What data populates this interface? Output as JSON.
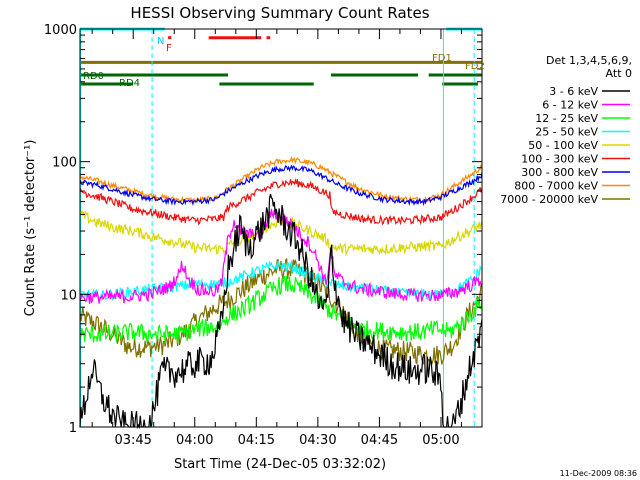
{
  "chart_data": {
    "type": "line",
    "title": "HESSI Observing Summary Count Rates",
    "xlabel": "Start Time (24-Dec-05 03:32:02)",
    "ylabel": "Count Rate (s⁻¹ detector⁻¹)",
    "ylog": true,
    "ylim": [
      1,
      1000
    ],
    "xlim_minutes": [
      212.033,
      310.0
    ],
    "x_ticks": [
      "03:45",
      "04:00",
      "04:15",
      "04:30",
      "04:45",
      "05:00"
    ],
    "y_ticks": [
      "1",
      "10",
      "100",
      "1000"
    ],
    "grid": false,
    "timestamp": "11-Dec-2009 08:36",
    "legend": {
      "placement": "right",
      "header": [
        "Det 1,3,4,5,6,9,",
        "Att 0"
      ],
      "entries": [
        {
          "label": "3 - 6 keV",
          "color": "#000000"
        },
        {
          "label": "6 - 12 keV",
          "color": "#ff00ff"
        },
        {
          "label": "12 - 25 keV",
          "color": "#00ff00"
        },
        {
          "label": "25 - 50 keV",
          "color": "#00ffff"
        },
        {
          "label": "50 - 100 keV",
          "color": "#d8d800"
        },
        {
          "label": "100 - 300 keV",
          "color": "#ee1111"
        },
        {
          "label": "300 - 800 keV",
          "color": "#0000ee"
        },
        {
          "label": "800 - 7000 keV",
          "color": "#ff8800"
        },
        {
          "label": "7000 - 20000 keV",
          "color": "#807000"
        }
      ]
    },
    "flag_labels": {
      "N": "N",
      "F": "F",
      "FD1": "FD1",
      "FD2": "FD2",
      "RD0": "RD0",
      "RD4": "RD4"
    },
    "flags": [
      {
        "label": "N",
        "color": "#00ffff",
        "value": 1000,
        "segments": [
          [
            212.0,
            232.7
          ],
          [
            263.0,
            263.0
          ],
          [
            301.3,
            310.0
          ]
        ]
      },
      {
        "label": "F",
        "color": "#ee1111",
        "value": 860,
        "segments": [
          [
            233.5,
            234.3
          ],
          [
            243.4,
            256.2
          ],
          [
            257.5,
            258.4
          ]
        ]
      },
      {
        "label": "FD",
        "color": "#807000",
        "value": 560,
        "segments": [
          [
            212.0,
            310.0
          ]
        ]
      },
      {
        "label": "RD0",
        "color": "#006600",
        "value": 450,
        "segments": [
          [
            212.0,
            248.1
          ],
          [
            273.2,
            294.4
          ],
          [
            297.0,
            311.0
          ]
        ]
      },
      {
        "label": "RD4",
        "color": "#006600",
        "value": 385,
        "segments": [
          [
            212.0,
            225.0
          ],
          [
            246.0,
            269.0
          ],
          [
            300.3,
            309.0
          ]
        ]
      }
    ],
    "vertical_lines": {
      "solid": [
        212.2,
        300.6
      ],
      "dashed": [
        229.6,
        308.1
      ],
      "color": "#00ffff"
    },
    "series": [
      {
        "name": "3 - 6 keV",
        "color": "#000000",
        "noise": 0.12,
        "points": [
          [
            212,
            1.0
          ],
          [
            215,
            2.8
          ],
          [
            217,
            1.8
          ],
          [
            220,
            1.2
          ],
          [
            223,
            1.0
          ],
          [
            228,
            1.0
          ],
          [
            229.3,
            1.1
          ],
          [
            232,
            2.6
          ],
          [
            236,
            2.6
          ],
          [
            240,
            3.0
          ],
          [
            244,
            3.2
          ],
          [
            246.5,
            6.0
          ],
          [
            248,
            15
          ],
          [
            249.5,
            22
          ],
          [
            251,
            32
          ],
          [
            253,
            22
          ],
          [
            255,
            28
          ],
          [
            256.5,
            33
          ],
          [
            259,
            47
          ],
          [
            261,
            38
          ],
          [
            263,
            30
          ],
          [
            265,
            25
          ],
          [
            267,
            17
          ],
          [
            269,
            11
          ],
          [
            271,
            7.5
          ],
          [
            272.5,
            9
          ],
          [
            273.2,
            24
          ],
          [
            274,
            13
          ],
          [
            276,
            6.5
          ],
          [
            279,
            5
          ],
          [
            283,
            4
          ],
          [
            288,
            3
          ],
          [
            293,
            2.6
          ],
          [
            297,
            2.8
          ],
          [
            300,
            2.2
          ],
          [
            300.7,
            1.0
          ],
          [
            303,
            1.0
          ],
          [
            305,
            1.6
          ],
          [
            307,
            2.8
          ],
          [
            310,
            5.5
          ]
        ]
      },
      {
        "name": "6 - 12 keV",
        "color": "#ff00ff",
        "noise": 0.05,
        "points": [
          [
            212,
            9.5
          ],
          [
            217,
            9.5
          ],
          [
            221,
            9.6
          ],
          [
            224,
            9.6
          ],
          [
            229,
            10
          ],
          [
            234,
            11.5
          ],
          [
            236,
            14
          ],
          [
            237,
            17
          ],
          [
            238.5,
            13
          ],
          [
            241,
            10.8
          ],
          [
            245,
            10.5
          ],
          [
            246.5,
            12
          ],
          [
            248,
            25
          ],
          [
            249.5,
            36
          ],
          [
            251,
            30
          ],
          [
            254,
            28
          ],
          [
            256,
            28
          ],
          [
            259,
            42
          ],
          [
            262,
            37
          ],
          [
            265,
            30
          ],
          [
            268,
            24
          ],
          [
            270,
            18
          ],
          [
            272,
            12
          ],
          [
            273.2,
            22
          ],
          [
            274,
            14
          ],
          [
            276,
            12.5
          ],
          [
            280,
            11
          ],
          [
            285,
            10.5
          ],
          [
            290,
            10
          ],
          [
            295,
            9.8
          ],
          [
            300,
            9.8
          ],
          [
            304,
            10.5
          ],
          [
            308,
            12
          ],
          [
            310,
            13
          ]
        ]
      },
      {
        "name": "12 - 25 keV",
        "color": "#00ff00",
        "noise": 0.07,
        "points": [
          [
            212,
            5.0
          ],
          [
            218,
            5.0
          ],
          [
            225,
            5.2
          ],
          [
            230,
            5.0
          ],
          [
            236,
            5.0
          ],
          [
            241,
            5.5
          ],
          [
            246,
            5.8
          ],
          [
            248,
            6.8
          ],
          [
            252,
            7.8
          ],
          [
            256,
            9.5
          ],
          [
            260,
            11.5
          ],
          [
            263,
            12
          ],
          [
            266,
            11
          ],
          [
            270,
            9
          ],
          [
            273,
            7.5
          ],
          [
            276,
            6.5
          ],
          [
            280,
            5.5
          ],
          [
            286,
            5.3
          ],
          [
            291,
            5.2
          ],
          [
            295,
            5.2
          ],
          [
            299,
            5.5
          ],
          [
            302,
            5.2
          ],
          [
            305,
            6
          ],
          [
            308,
            7.5
          ],
          [
            310,
            9
          ]
        ]
      },
      {
        "name": "25 - 50 keV",
        "color": "#00ffff",
        "noise": 0.04,
        "points": [
          [
            212,
            10
          ],
          [
            218,
            9.8
          ],
          [
            225,
            10.5
          ],
          [
            230,
            11
          ],
          [
            236,
            11.5
          ],
          [
            241,
            12
          ],
          [
            246,
            12
          ],
          [
            250,
            13
          ],
          [
            255,
            15
          ],
          [
            260,
            16.5
          ],
          [
            264,
            16
          ],
          [
            268,
            14
          ],
          [
            272,
            12.5
          ],
          [
            276,
            11.5
          ],
          [
            282,
            11
          ],
          [
            287,
            10.5
          ],
          [
            292,
            10
          ],
          [
            296,
            10
          ],
          [
            300,
            10
          ],
          [
            304,
            11
          ],
          [
            308,
            13
          ],
          [
            310,
            16
          ]
        ]
      },
      {
        "name": "50 - 100 keV",
        "color": "#d8d800",
        "noise": 0.04,
        "points": [
          [
            212,
            40
          ],
          [
            216,
            35
          ],
          [
            220,
            32
          ],
          [
            225,
            30
          ],
          [
            230,
            27
          ],
          [
            235,
            25
          ],
          [
            240,
            22.5
          ],
          [
            245,
            22
          ],
          [
            247,
            22
          ],
          [
            249,
            24
          ],
          [
            252,
            26
          ],
          [
            256,
            30
          ],
          [
            260,
            35
          ],
          [
            263,
            35
          ],
          [
            266,
            32
          ],
          [
            270,
            28
          ],
          [
            272,
            26
          ],
          [
            273,
            23
          ],
          [
            276,
            22
          ],
          [
            281,
            22
          ],
          [
            286,
            22
          ],
          [
            291,
            22.5
          ],
          [
            296,
            23
          ],
          [
            300,
            23
          ],
          [
            304,
            27
          ],
          [
            308,
            31
          ],
          [
            310,
            34
          ]
        ]
      },
      {
        "name": "100 - 300 keV",
        "color": "#ee1111",
        "noise": 0.03,
        "points": [
          [
            212,
            60
          ],
          [
            216,
            55
          ],
          [
            220,
            50
          ],
          [
            225,
            44
          ],
          [
            230,
            41
          ],
          [
            235,
            38
          ],
          [
            240,
            36
          ],
          [
            245,
            37
          ],
          [
            247,
            38
          ],
          [
            248,
            45
          ],
          [
            252,
            52
          ],
          [
            256,
            60
          ],
          [
            260,
            68
          ],
          [
            264,
            70
          ],
          [
            268,
            66
          ],
          [
            271,
            60
          ],
          [
            273.1,
            56
          ],
          [
            273.2,
            42
          ],
          [
            276,
            40
          ],
          [
            281,
            37
          ],
          [
            286,
            36
          ],
          [
            292,
            36
          ],
          [
            296,
            37
          ],
          [
            300,
            38
          ],
          [
            304,
            45
          ],
          [
            308,
            55
          ],
          [
            310,
            62
          ]
        ]
      },
      {
        "name": "300 - 800 keV",
        "color": "#0000ee",
        "noise": 0.02,
        "points": [
          [
            212,
            70
          ],
          [
            216,
            67
          ],
          [
            220,
            62
          ],
          [
            225,
            56
          ],
          [
            230,
            52
          ],
          [
            235,
            50
          ],
          [
            240,
            50
          ],
          [
            245,
            52
          ],
          [
            248,
            60
          ],
          [
            252,
            70
          ],
          [
            256,
            80
          ],
          [
            260,
            88
          ],
          [
            264,
            90
          ],
          [
            268,
            86
          ],
          [
            271,
            78
          ],
          [
            275,
            67
          ],
          [
            280,
            58
          ],
          [
            286,
            52
          ],
          [
            292,
            50
          ],
          [
            296,
            50
          ],
          [
            300,
            54
          ],
          [
            304,
            62
          ],
          [
            308,
            72
          ],
          [
            310,
            80
          ]
        ]
      },
      {
        "name": "800 - 7000 keV",
        "color": "#ff8800",
        "noise": 0.02,
        "points": [
          [
            212,
            77
          ],
          [
            216,
            72
          ],
          [
            220,
            66
          ],
          [
            225,
            60
          ],
          [
            230,
            55
          ],
          [
            235,
            52
          ],
          [
            240,
            51
          ],
          [
            245,
            53
          ],
          [
            248,
            62
          ],
          [
            252,
            75
          ],
          [
            256,
            90
          ],
          [
            260,
            100
          ],
          [
            264,
            103
          ],
          [
            268,
            98
          ],
          [
            271,
            90
          ],
          [
            275,
            76
          ],
          [
            280,
            63
          ],
          [
            286,
            55
          ],
          [
            292,
            52
          ],
          [
            296,
            52
          ],
          [
            300,
            56
          ],
          [
            304,
            68
          ],
          [
            308,
            82
          ],
          [
            310,
            92
          ]
        ]
      },
      {
        "name": "7000 - 20000 keV",
        "color": "#807000",
        "noise": 0.08,
        "points": [
          [
            212,
            6.8
          ],
          [
            216,
            6.0
          ],
          [
            220,
            5.0
          ],
          [
            224,
            4.0
          ],
          [
            229,
            4.0
          ],
          [
            233,
            4.2
          ],
          [
            237,
            5.0
          ],
          [
            241,
            6.5
          ],
          [
            245,
            8.0
          ],
          [
            248,
            9.0
          ],
          [
            252,
            11
          ],
          [
            256,
            13.5
          ],
          [
            260,
            15.5
          ],
          [
            264,
            15.5
          ],
          [
            268,
            13.5
          ],
          [
            272,
            10.5
          ],
          [
            276,
            7.5
          ],
          [
            280,
            5.0
          ],
          [
            284,
            4.0
          ],
          [
            287,
            3.8
          ],
          [
            292,
            3.7
          ],
          [
            296,
            3.5
          ],
          [
            300,
            3.5
          ],
          [
            303,
            4.2
          ],
          [
            306,
            6.5
          ],
          [
            310,
            10.5
          ]
        ]
      }
    ]
  }
}
